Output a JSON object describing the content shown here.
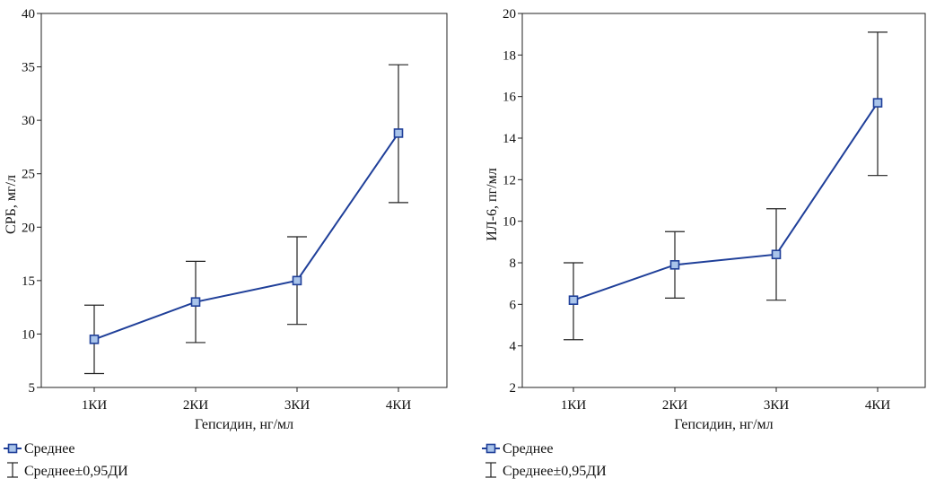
{
  "chart_data": [
    {
      "type": "line",
      "categories": [
        "1КИ",
        "2КИ",
        "3КИ",
        "4КИ"
      ],
      "series": [
        {
          "name": "Среднее",
          "values": [
            9.5,
            13.0,
            15.0,
            28.8
          ],
          "ci_low": [
            6.3,
            9.2,
            10.9,
            22.3
          ],
          "ci_high": [
            12.7,
            16.8,
            19.1,
            35.2
          ]
        }
      ],
      "xlabel": "Гепсидин, нг/мл",
      "ylabel": "СРБ, мг/л",
      "ylim": [
        5,
        40
      ],
      "yticks": [
        5,
        10,
        15,
        20,
        25,
        30,
        35,
        40
      ],
      "grid": false,
      "color": "#1f3f99",
      "legend": {
        "placement": "bottom-left",
        "mean_label": "Среднее",
        "ci_label": "Среднее±0,95ДИ"
      }
    },
    {
      "type": "line",
      "categories": [
        "1КИ",
        "2КИ",
        "3КИ",
        "4КИ"
      ],
      "series": [
        {
          "name": "Среднее",
          "values": [
            6.2,
            7.9,
            8.4,
            15.7
          ],
          "ci_low": [
            4.3,
            6.3,
            6.2,
            12.2
          ],
          "ci_high": [
            8.0,
            9.5,
            10.6,
            19.1
          ]
        }
      ],
      "xlabel": "Гепсидин, нг/мл",
      "ylabel": "ИЛ-6, пг/мл",
      "ylim": [
        2,
        20
      ],
      "yticks": [
        2,
        4,
        6,
        8,
        10,
        12,
        14,
        16,
        18,
        20
      ],
      "grid": false,
      "color": "#1f3f99",
      "legend": {
        "placement": "bottom-left",
        "mean_label": "Среднее",
        "ci_label": "Среднее±0,95ДИ"
      }
    }
  ]
}
